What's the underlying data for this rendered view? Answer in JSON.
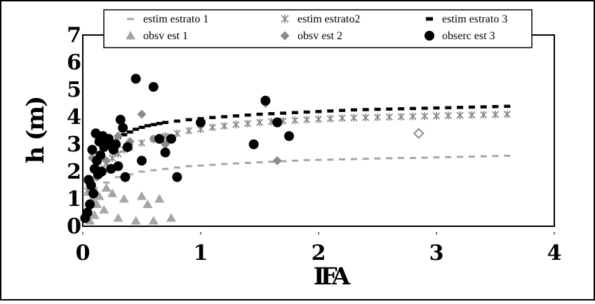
{
  "chart_data": {
    "type": "scatter",
    "xlabel": "IFA",
    "ylabel": "h (m)",
    "xlim": [
      0,
      4
    ],
    "ylim": [
      0,
      7
    ],
    "x_ticks": [
      "0",
      "1",
      "2",
      "3",
      "4"
    ],
    "y_ticks": [
      "0",
      "1",
      "2",
      "3",
      "4",
      "5",
      "6",
      "7"
    ],
    "grid": false,
    "legend_position": "top",
    "legend": [
      {
        "label": "estim estrato 1",
        "symbol": "dash",
        "color": "#a6a6a6"
      },
      {
        "label": "estim estrato2",
        "symbol": "asterisk",
        "color": "#8c8c8c"
      },
      {
        "label": "estim estrato 3",
        "symbol": "bar",
        "color": "#000000"
      },
      {
        "label": "obsv est 1",
        "symbol": "triangle",
        "color": "#a6a6a6"
      },
      {
        "label": "obsv est 2",
        "symbol": "diamond",
        "color": "#8c8c8c"
      },
      {
        "label": "obserc est 3",
        "symbol": "circle",
        "color": "#000000"
      }
    ],
    "series": [
      {
        "name": "estim estrato 1",
        "kind": "curve",
        "symbol": "dash",
        "color": "#a6a6a6",
        "x": [
          0.04,
          0.1,
          0.2,
          0.3,
          0.4,
          0.5,
          0.6,
          0.7,
          0.8,
          0.9,
          1.0,
          1.1,
          1.2,
          1.3,
          1.4,
          1.5,
          1.6,
          1.7,
          1.8,
          1.9,
          2.0,
          2.1,
          2.2,
          2.3,
          2.4,
          2.5,
          2.6,
          2.7,
          2.8,
          2.9,
          3.0,
          3.1,
          3.2,
          3.3,
          3.4,
          3.5,
          3.6
        ],
        "y": [
          1.15,
          1.4,
          1.6,
          1.8,
          1.9,
          2.0,
          2.05,
          2.1,
          2.15,
          2.2,
          2.22,
          2.25,
          2.28,
          2.3,
          2.32,
          2.34,
          2.36,
          2.38,
          2.4,
          2.42,
          2.43,
          2.44,
          2.45,
          2.46,
          2.47,
          2.48,
          2.49,
          2.5,
          2.5,
          2.51,
          2.52,
          2.53,
          2.54,
          2.55,
          2.56,
          2.57,
          2.58
        ]
      },
      {
        "name": "estim estrato2",
        "kind": "curve",
        "symbol": "asterisk",
        "color": "#8c8c8c",
        "x": [
          0.04,
          0.08,
          0.12,
          0.16,
          0.2,
          0.25,
          0.3,
          0.35,
          0.4,
          0.5,
          0.6,
          0.7,
          0.8,
          0.9,
          1.0,
          1.1,
          1.2,
          1.3,
          1.4,
          1.5,
          1.6,
          1.7,
          1.8,
          1.9,
          2.0,
          2.1,
          2.2,
          2.3,
          2.4,
          2.5,
          2.6,
          2.7,
          2.8,
          2.9,
          3.0,
          3.1,
          3.2,
          3.3,
          3.4,
          3.5,
          3.6
        ],
        "y": [
          1.3,
          1.6,
          1.9,
          2.1,
          2.3,
          2.5,
          2.65,
          2.8,
          2.9,
          3.05,
          3.2,
          3.3,
          3.4,
          3.5,
          3.55,
          3.62,
          3.67,
          3.72,
          3.76,
          3.8,
          3.83,
          3.86,
          3.88,
          3.9,
          3.92,
          3.94,
          3.96,
          3.97,
          3.98,
          3.99,
          4.0,
          4.01,
          4.02,
          4.03,
          4.04,
          4.05,
          4.06,
          4.07,
          4.08,
          4.09,
          4.1
        ]
      },
      {
        "name": "estim estrato 3",
        "kind": "curve",
        "symbol": "bar",
        "color": "#000000",
        "x": [
          0.22,
          0.26,
          0.3,
          0.35,
          0.4,
          0.45,
          0.5,
          0.55,
          0.6,
          0.65,
          0.7,
          0.8,
          0.9,
          1.0,
          1.1,
          1.2,
          1.3,
          1.4,
          1.5,
          1.6,
          1.7,
          1.8,
          1.9,
          2.0,
          2.1,
          2.2,
          2.3,
          2.4,
          2.5,
          2.6,
          2.7,
          2.8,
          2.9,
          3.0,
          3.1,
          3.2,
          3.3,
          3.4,
          3.5,
          3.6
        ],
        "y": [
          3.0,
          3.1,
          3.25,
          3.35,
          3.45,
          3.55,
          3.62,
          3.68,
          3.72,
          3.76,
          3.8,
          3.85,
          3.9,
          3.94,
          3.98,
          4.01,
          4.04,
          4.07,
          4.1,
          4.12,
          4.14,
          4.16,
          4.18,
          4.2,
          4.22,
          4.24,
          4.26,
          4.27,
          4.28,
          4.29,
          4.3,
          4.31,
          4.32,
          4.33,
          4.34,
          4.35,
          4.36,
          4.37,
          4.38,
          4.39
        ]
      },
      {
        "name": "obsv est 1",
        "kind": "points",
        "symbol": "triangle",
        "color": "#a6a6a6",
        "x": [
          0.04,
          0.06,
          0.08,
          0.1,
          0.12,
          0.14,
          0.18,
          0.2,
          0.25,
          0.3,
          0.35,
          0.45,
          0.5,
          0.55,
          0.6,
          0.65,
          0.75
        ],
        "y": [
          0.5,
          0.2,
          1.0,
          0.4,
          0.8,
          1.1,
          0.6,
          1.4,
          1.2,
          0.3,
          1.0,
          0.2,
          1.1,
          0.8,
          0.2,
          1.0,
          0.3
        ]
      },
      {
        "name": "obsv est 2",
        "kind": "points",
        "symbol": "diamond",
        "color": "#8c8c8c",
        "x": [
          0.05,
          0.08,
          0.12,
          0.15,
          0.2,
          0.3,
          0.4,
          0.5,
          0.6,
          0.7,
          1.55,
          1.65,
          2.85
        ],
        "y": [
          1.6,
          2.5,
          1.8,
          2.6,
          2.4,
          3.3,
          3.1,
          4.1,
          3.2,
          3.0,
          4.5,
          2.4,
          3.4
        ]
      },
      {
        "name": "obserc est 3",
        "kind": "points",
        "symbol": "circle",
        "color": "#000000",
        "x": [
          0.02,
          0.04,
          0.05,
          0.06,
          0.07,
          0.08,
          0.09,
          0.1,
          0.11,
          0.12,
          0.13,
          0.14,
          0.15,
          0.16,
          0.17,
          0.18,
          0.2,
          0.22,
          0.24,
          0.26,
          0.28,
          0.3,
          0.32,
          0.34,
          0.36,
          0.38,
          0.45,
          0.5,
          0.6,
          0.65,
          0.7,
          0.75,
          0.8,
          1.0,
          1.45,
          1.55,
          1.65,
          1.75
        ],
        "y": [
          0.3,
          0.5,
          1.7,
          0.8,
          1.5,
          2.8,
          1.2,
          2.1,
          3.4,
          2.4,
          1.9,
          3.1,
          2.6,
          2.0,
          3.3,
          2.9,
          3.0,
          3.2,
          2.1,
          2.8,
          3.0,
          2.2,
          3.9,
          3.6,
          1.8,
          2.9,
          5.4,
          2.4,
          5.1,
          3.2,
          2.7,
          3.2,
          1.8,
          3.8,
          3.0,
          4.6,
          3.8,
          3.3
        ]
      }
    ]
  }
}
